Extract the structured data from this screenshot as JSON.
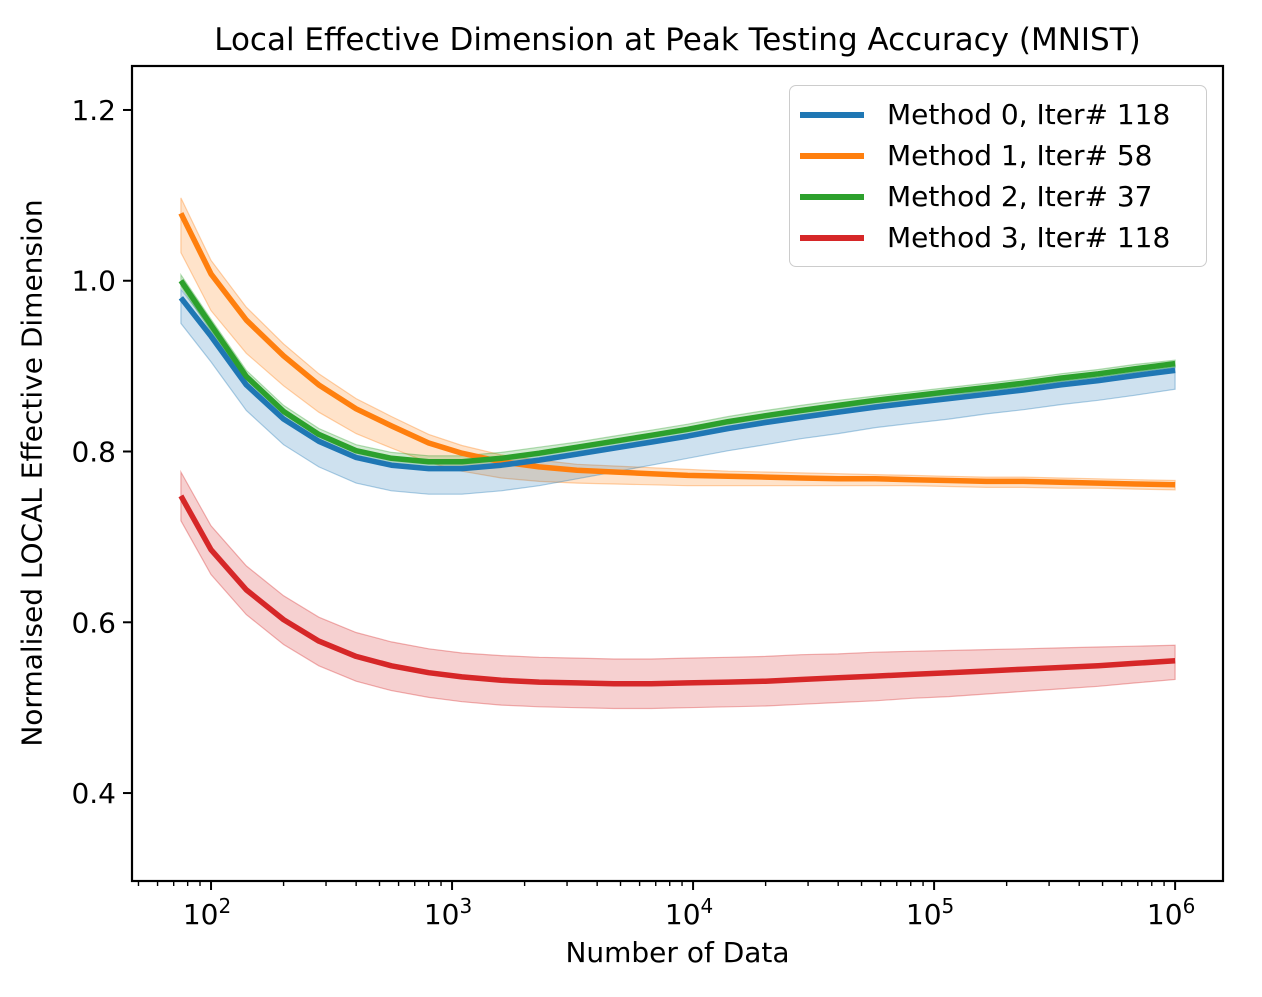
{
  "chart_data": {
    "type": "line",
    "title": "Local Effective Dimension at Peak Testing Accuracy (MNIST)",
    "xlabel": "Number of Data",
    "ylabel": "Normalised LOCAL Effective Dimension",
    "x_scale": "log",
    "grid": false,
    "legend_position": "upper right",
    "axis_color": "#000000",
    "band_alpha": 0.22,
    "xlim": [
      47,
      1580000
    ],
    "ylim": [
      0.297,
      1.2515
    ],
    "x_major_ticks": [
      {
        "value": 100,
        "mantissa": "10",
        "exponent": "2"
      },
      {
        "value": 1000,
        "mantissa": "10",
        "exponent": "3"
      },
      {
        "value": 10000,
        "mantissa": "10",
        "exponent": "4"
      },
      {
        "value": 100000,
        "mantissa": "10",
        "exponent": "5"
      },
      {
        "value": 1000000,
        "mantissa": "10",
        "exponent": "6"
      }
    ],
    "y_ticks": [
      0.4,
      0.6,
      0.8,
      1.0,
      1.2
    ],
    "y_tick_labels": [
      "0.4",
      "0.6",
      "0.8",
      "1.0",
      "1.2"
    ],
    "x": [
      75,
      100,
      140,
      200,
      280,
      400,
      560,
      800,
      1100,
      1600,
      2300,
      3300,
      4700,
      6700,
      9500,
      14000,
      20000,
      28000,
      40000,
      57000,
      81000,
      115000,
      165000,
      235000,
      335000,
      480000,
      685000,
      1000000
    ],
    "series": [
      {
        "name": "Method 0, Iter# 118",
        "color": "#1f77b4",
        "values": [
          0.98,
          0.935,
          0.878,
          0.838,
          0.812,
          0.793,
          0.784,
          0.78,
          0.78,
          0.784,
          0.79,
          0.797,
          0.804,
          0.811,
          0.818,
          0.827,
          0.834,
          0.84,
          0.846,
          0.852,
          0.857,
          0.862,
          0.867,
          0.872,
          0.878,
          0.883,
          0.889,
          0.895
        ],
        "band_lower": [
          0.95,
          0.905,
          0.848,
          0.808,
          0.782,
          0.763,
          0.754,
          0.75,
          0.75,
          0.754,
          0.76,
          0.768,
          0.776,
          0.784,
          0.792,
          0.801,
          0.808,
          0.815,
          0.821,
          0.828,
          0.833,
          0.838,
          0.844,
          0.849,
          0.855,
          0.86,
          0.866,
          0.873
        ],
        "band_upper": [
          0.99,
          0.945,
          0.888,
          0.848,
          0.822,
          0.802,
          0.793,
          0.789,
          0.789,
          0.792,
          0.798,
          0.805,
          0.812,
          0.818,
          0.825,
          0.833,
          0.84,
          0.846,
          0.851,
          0.857,
          0.862,
          0.867,
          0.871,
          0.876,
          0.882,
          0.887,
          0.893,
          0.899
        ]
      },
      {
        "name": "Method 1, Iter# 58",
        "color": "#ff7f0e",
        "values": [
          1.079,
          1.008,
          0.954,
          0.912,
          0.878,
          0.85,
          0.83,
          0.81,
          0.798,
          0.788,
          0.782,
          0.778,
          0.776,
          0.774,
          0.772,
          0.771,
          0.77,
          0.769,
          0.768,
          0.768,
          0.767,
          0.766,
          0.765,
          0.765,
          0.764,
          0.763,
          0.762,
          0.761
        ],
        "band_lower": [
          1.033,
          0.965,
          0.915,
          0.877,
          0.846,
          0.821,
          0.804,
          0.787,
          0.777,
          0.769,
          0.765,
          0.763,
          0.762,
          0.761,
          0.76,
          0.76,
          0.76,
          0.76,
          0.76,
          0.76,
          0.76,
          0.759,
          0.758,
          0.758,
          0.757,
          0.757,
          0.756,
          0.755
        ],
        "band_upper": [
          1.097,
          1.024,
          0.969,
          0.926,
          0.891,
          0.862,
          0.841,
          0.82,
          0.807,
          0.796,
          0.79,
          0.785,
          0.783,
          0.781,
          0.779,
          0.777,
          0.776,
          0.775,
          0.774,
          0.773,
          0.772,
          0.771,
          0.77,
          0.77,
          0.769,
          0.768,
          0.767,
          0.766
        ]
      },
      {
        "name": "Method 2, Iter# 37",
        "color": "#2ca02c",
        "values": [
          1.0,
          0.948,
          0.888,
          0.847,
          0.82,
          0.801,
          0.792,
          0.788,
          0.788,
          0.792,
          0.798,
          0.805,
          0.812,
          0.819,
          0.826,
          0.835,
          0.842,
          0.848,
          0.854,
          0.86,
          0.865,
          0.87,
          0.875,
          0.88,
          0.886,
          0.891,
          0.897,
          0.903
        ],
        "band_lower": [
          0.993,
          0.941,
          0.881,
          0.84,
          0.813,
          0.794,
          0.785,
          0.781,
          0.781,
          0.785,
          0.791,
          0.799,
          0.806,
          0.813,
          0.82,
          0.829,
          0.837,
          0.843,
          0.849,
          0.855,
          0.86,
          0.865,
          0.871,
          0.876,
          0.882,
          0.887,
          0.893,
          0.899
        ],
        "band_upper": [
          1.007,
          0.955,
          0.895,
          0.854,
          0.827,
          0.808,
          0.799,
          0.795,
          0.795,
          0.799,
          0.805,
          0.811,
          0.818,
          0.825,
          0.832,
          0.841,
          0.848,
          0.854,
          0.86,
          0.865,
          0.87,
          0.875,
          0.88,
          0.885,
          0.891,
          0.896,
          0.902,
          0.907
        ]
      },
      {
        "name": "Method 3, Iter# 118",
        "color": "#d62728",
        "values": [
          0.748,
          0.685,
          0.638,
          0.603,
          0.578,
          0.56,
          0.549,
          0.541,
          0.536,
          0.532,
          0.53,
          0.529,
          0.528,
          0.528,
          0.529,
          0.53,
          0.531,
          0.533,
          0.535,
          0.537,
          0.539,
          0.541,
          0.543,
          0.545,
          0.547,
          0.549,
          0.552,
          0.555
        ],
        "band_lower": [
          0.719,
          0.656,
          0.609,
          0.574,
          0.549,
          0.531,
          0.52,
          0.512,
          0.507,
          0.503,
          0.501,
          0.5,
          0.499,
          0.499,
          0.5,
          0.501,
          0.502,
          0.504,
          0.506,
          0.508,
          0.511,
          0.513,
          0.516,
          0.519,
          0.522,
          0.525,
          0.529,
          0.533
        ],
        "band_upper": [
          0.776,
          0.713,
          0.666,
          0.631,
          0.606,
          0.588,
          0.577,
          0.569,
          0.564,
          0.561,
          0.559,
          0.558,
          0.557,
          0.557,
          0.558,
          0.559,
          0.56,
          0.562,
          0.563,
          0.565,
          0.566,
          0.567,
          0.568,
          0.569,
          0.57,
          0.571,
          0.572,
          0.573
        ]
      }
    ]
  }
}
